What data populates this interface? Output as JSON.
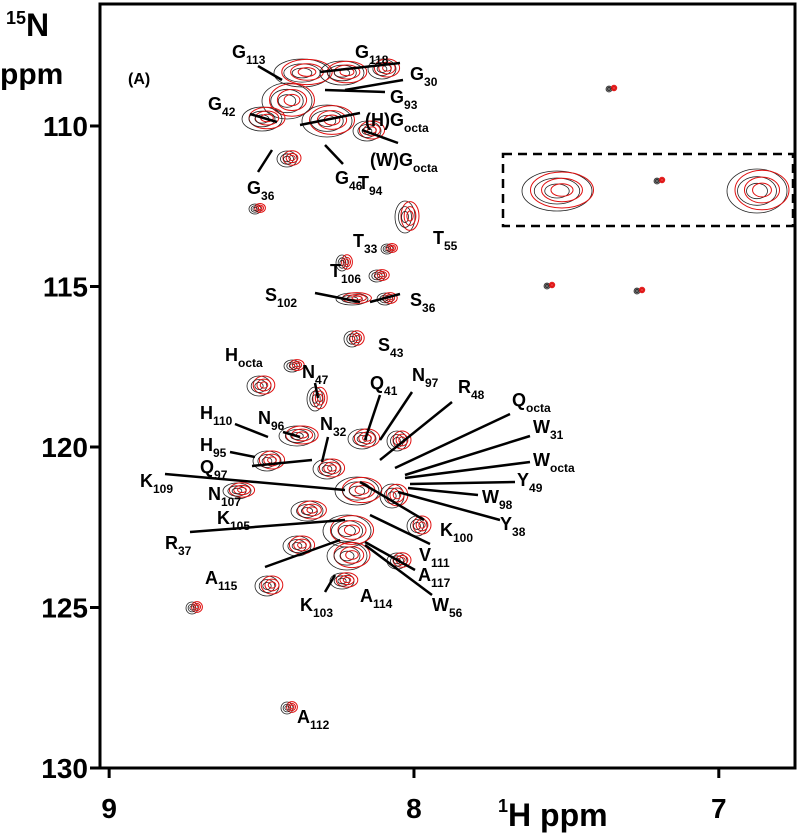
{
  "chart_data": {
    "type": "nmr-spectrum",
    "x_label": {
      "sup": "1",
      "text": "H ppm"
    },
    "y_label": {
      "sup": "15",
      "text": "N",
      "line2": "ppm"
    },
    "panel_label": "(A)",
    "xlim": [
      9.03,
      6.75
    ],
    "ylim": [
      130,
      106.2
    ],
    "xticks": [
      9,
      8,
      7
    ],
    "yticks": [
      110,
      115,
      120,
      125,
      130
    ],
    "annotations": [
      {
        "text": "G",
        "sub": "113"
      },
      {
        "text": "G",
        "sub": "118"
      },
      {
        "text": "G",
        "sub": "30"
      },
      {
        "text": "G",
        "sub": "93"
      },
      {
        "text": "G",
        "sub": "42"
      },
      {
        "text": "(H)G",
        "sub": "octa"
      },
      {
        "text": "(W)G",
        "sub": "octa"
      },
      {
        "text": "G",
        "sub": "36"
      },
      {
        "text": "G",
        "sub": "46"
      },
      {
        "text": "T",
        "sub": "94"
      },
      {
        "text": "T",
        "sub": "33"
      },
      {
        "text": "T",
        "sub": "55"
      },
      {
        "text": "T",
        "sub": "106"
      },
      {
        "text": "S",
        "sub": "102"
      },
      {
        "text": "S",
        "sub": "36"
      },
      {
        "text": "S",
        "sub": "43"
      },
      {
        "text": "H",
        "sub": "octa"
      },
      {
        "text": "N",
        "sub": "47"
      },
      {
        "text": "Q",
        "sub": "41"
      },
      {
        "text": "N",
        "sub": "97"
      },
      {
        "text": "R",
        "sub": "48"
      },
      {
        "text": "Q",
        "sub": "octa"
      },
      {
        "text": "H",
        "sub": "110"
      },
      {
        "text": "N",
        "sub": "96"
      },
      {
        "text": "N",
        "sub": "32"
      },
      {
        "text": "W",
        "sub": "31"
      },
      {
        "text": "H",
        "sub": "95"
      },
      {
        "text": "W",
        "sub": "octa"
      },
      {
        "text": "Q",
        "sub": "97"
      },
      {
        "text": "Y",
        "sub": "49"
      },
      {
        "text": "K",
        "sub": "109"
      },
      {
        "text": "W",
        "sub": "98"
      },
      {
        "text": "N",
        "sub": "107"
      },
      {
        "text": "Y",
        "sub": "38"
      },
      {
        "text": "K",
        "sub": "105"
      },
      {
        "text": "K",
        "sub": "100"
      },
      {
        "text": "R",
        "sub": "37"
      },
      {
        "text": "V",
        "sub": "111"
      },
      {
        "text": "A",
        "sub": "115"
      },
      {
        "text": "A",
        "sub": "117"
      },
      {
        "text": "A",
        "sub": "114"
      },
      {
        "text": "W",
        "sub": "56"
      },
      {
        "text": "K",
        "sub": "103"
      },
      {
        "text": "A",
        "sub": "112"
      }
    ]
  }
}
